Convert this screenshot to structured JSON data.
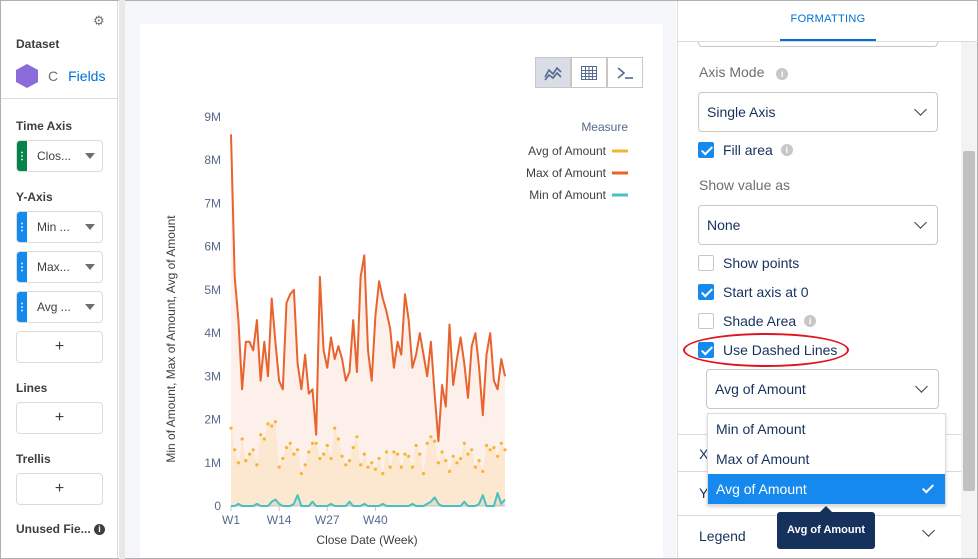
{
  "sidebar": {
    "dataset_label": "Dataset",
    "dataset_name_fragment": "C",
    "fields_link": "Fields",
    "time_axis_label": "Time Axis",
    "time_axis_pill": "Clos...",
    "y_axis_label": "Y-Axis",
    "y_axis_pills": [
      "Min ...",
      "Max...",
      "Avg ..."
    ],
    "add_symbol": "+",
    "lines_label": "Lines",
    "trellis_label": "Trellis",
    "unused_label": "Unused Fie...",
    "colors": {
      "time_grip": "#04844b",
      "y_grip": "#1589ee"
    }
  },
  "chart_data": {
    "type": "line",
    "xlabel": "Close Date (Week)",
    "ylabel": "Min of Amount, Max of Amount, Avg of Amount",
    "x_ticks": [
      "W1",
      "W14",
      "W27",
      "W40"
    ],
    "y_ticks": [
      "0",
      "1M",
      "2M",
      "3M",
      "4M",
      "5M",
      "6M",
      "7M",
      "8M",
      "9M"
    ],
    "ylim": [
      0,
      9000000
    ],
    "legend_title": "Measure",
    "legend_position": "top-right",
    "fill_area": true,
    "series": [
      {
        "name": "Avg of Amount",
        "color": "#f5b52d",
        "style": "dotted",
        "values": [
          1800000,
          1300000,
          1000000,
          1550000,
          1050000,
          1200000,
          1300000,
          950000,
          1650000,
          1550000,
          1900000,
          1850000,
          1950000,
          900000,
          1100000,
          1350000,
          1450000,
          1200000,
          1300000,
          750000,
          950000,
          1250000,
          1450000,
          1450000,
          1100000,
          1200000,
          1400000,
          1100000,
          1800000,
          1550000,
          1150000,
          950000,
          1050000,
          1350000,
          1600000,
          950000,
          1200000,
          900000,
          1000000,
          850000,
          1100000,
          750000,
          1250000,
          900000,
          1250000,
          1200000,
          900000,
          1200000,
          1150000,
          900000,
          1400000,
          1200000,
          750000,
          1450000,
          1600000,
          1500000,
          1000000,
          1250000,
          1050000,
          800000,
          1150000,
          1000000,
          1100000,
          1450000,
          1200000,
          1300000,
          900000,
          1050000,
          800000,
          1400000,
          1300000,
          1350000,
          1150000,
          1450000,
          1300000
        ]
      },
      {
        "name": "Max of Amount",
        "color": "#e8632e",
        "style": "solid",
        "values": [
          8600000,
          5300000,
          4300000,
          2700000,
          3800000,
          3800000,
          3600000,
          4300000,
          2900000,
          3800000,
          3000000,
          4800000,
          3800000,
          2900000,
          2700000,
          4700000,
          4900000,
          5000000,
          3300000,
          2700000,
          3500000,
          2600000,
          2700000,
          1650000,
          5300000,
          3600000,
          3200000,
          3900000,
          3400000,
          3700000,
          3400000,
          2900000,
          3100000,
          4300000,
          3100000,
          5300000,
          5800000,
          3600000,
          2900000,
          4400000,
          5200000,
          4800000,
          4500000,
          4100000,
          3200000,
          3800000,
          3500000,
          4900000,
          4300000,
          3200000,
          3500000,
          4000000,
          3500000,
          3000000,
          3800000,
          2600000,
          1500000,
          2800000,
          2300000,
          4200000,
          2800000,
          3400000,
          3900000,
          3300000,
          2500000,
          3700000,
          4000000,
          3200000,
          2100000,
          3500000,
          4000000,
          2900000,
          2700000,
          3400000,
          3000000
        ]
      },
      {
        "name": "Min of Amount",
        "color": "#4bc0c0",
        "style": "solid",
        "values": [
          0,
          0,
          50000,
          0,
          0,
          0,
          0,
          50000,
          0,
          0,
          0,
          100000,
          150000,
          50000,
          0,
          0,
          0,
          50000,
          250000,
          0,
          0,
          0,
          100000,
          0,
          0,
          0,
          0,
          50000,
          0,
          0,
          0,
          0,
          100000,
          0,
          0,
          0,
          50000,
          0,
          0,
          0,
          0,
          50000,
          0,
          0,
          0,
          0,
          0,
          0,
          0,
          50000,
          0,
          0,
          0,
          50000,
          100000,
          200000,
          50000,
          0,
          0,
          0,
          0,
          0,
          0,
          100000,
          0,
          0,
          0,
          50000,
          250000,
          0,
          0,
          0,
          300000,
          50000,
          150000
        ]
      }
    ]
  },
  "toolbar": {
    "buttons": [
      "chart-type-icon",
      "table-icon",
      "query-icon"
    ]
  },
  "formatting": {
    "tab_label": "FORMATTING",
    "axis_mode_label": "Axis Mode",
    "axis_mode_value": "Single Axis",
    "fill_area_label": "Fill area",
    "fill_area_checked": true,
    "show_value_as_label": "Show value as",
    "show_value_as_value": "None",
    "show_points_label": "Show points",
    "show_points_checked": false,
    "start_axis_label": "Start axis at 0",
    "start_axis_checked": true,
    "shade_area_label": "Shade Area",
    "shade_area_checked": false,
    "dashed_lines_label": "Use Dashed Lines",
    "dashed_lines_checked": true,
    "dashed_select_value": "Avg of Amount",
    "dashed_options": [
      "Min of Amount",
      "Max of Amount",
      "Avg of Amount"
    ],
    "selected_option": "Avg of Amount",
    "partial_row_1": "X",
    "partial_row_2": "Y",
    "legend_label": "Legend",
    "tooltip_text": "Avg of Amount"
  }
}
